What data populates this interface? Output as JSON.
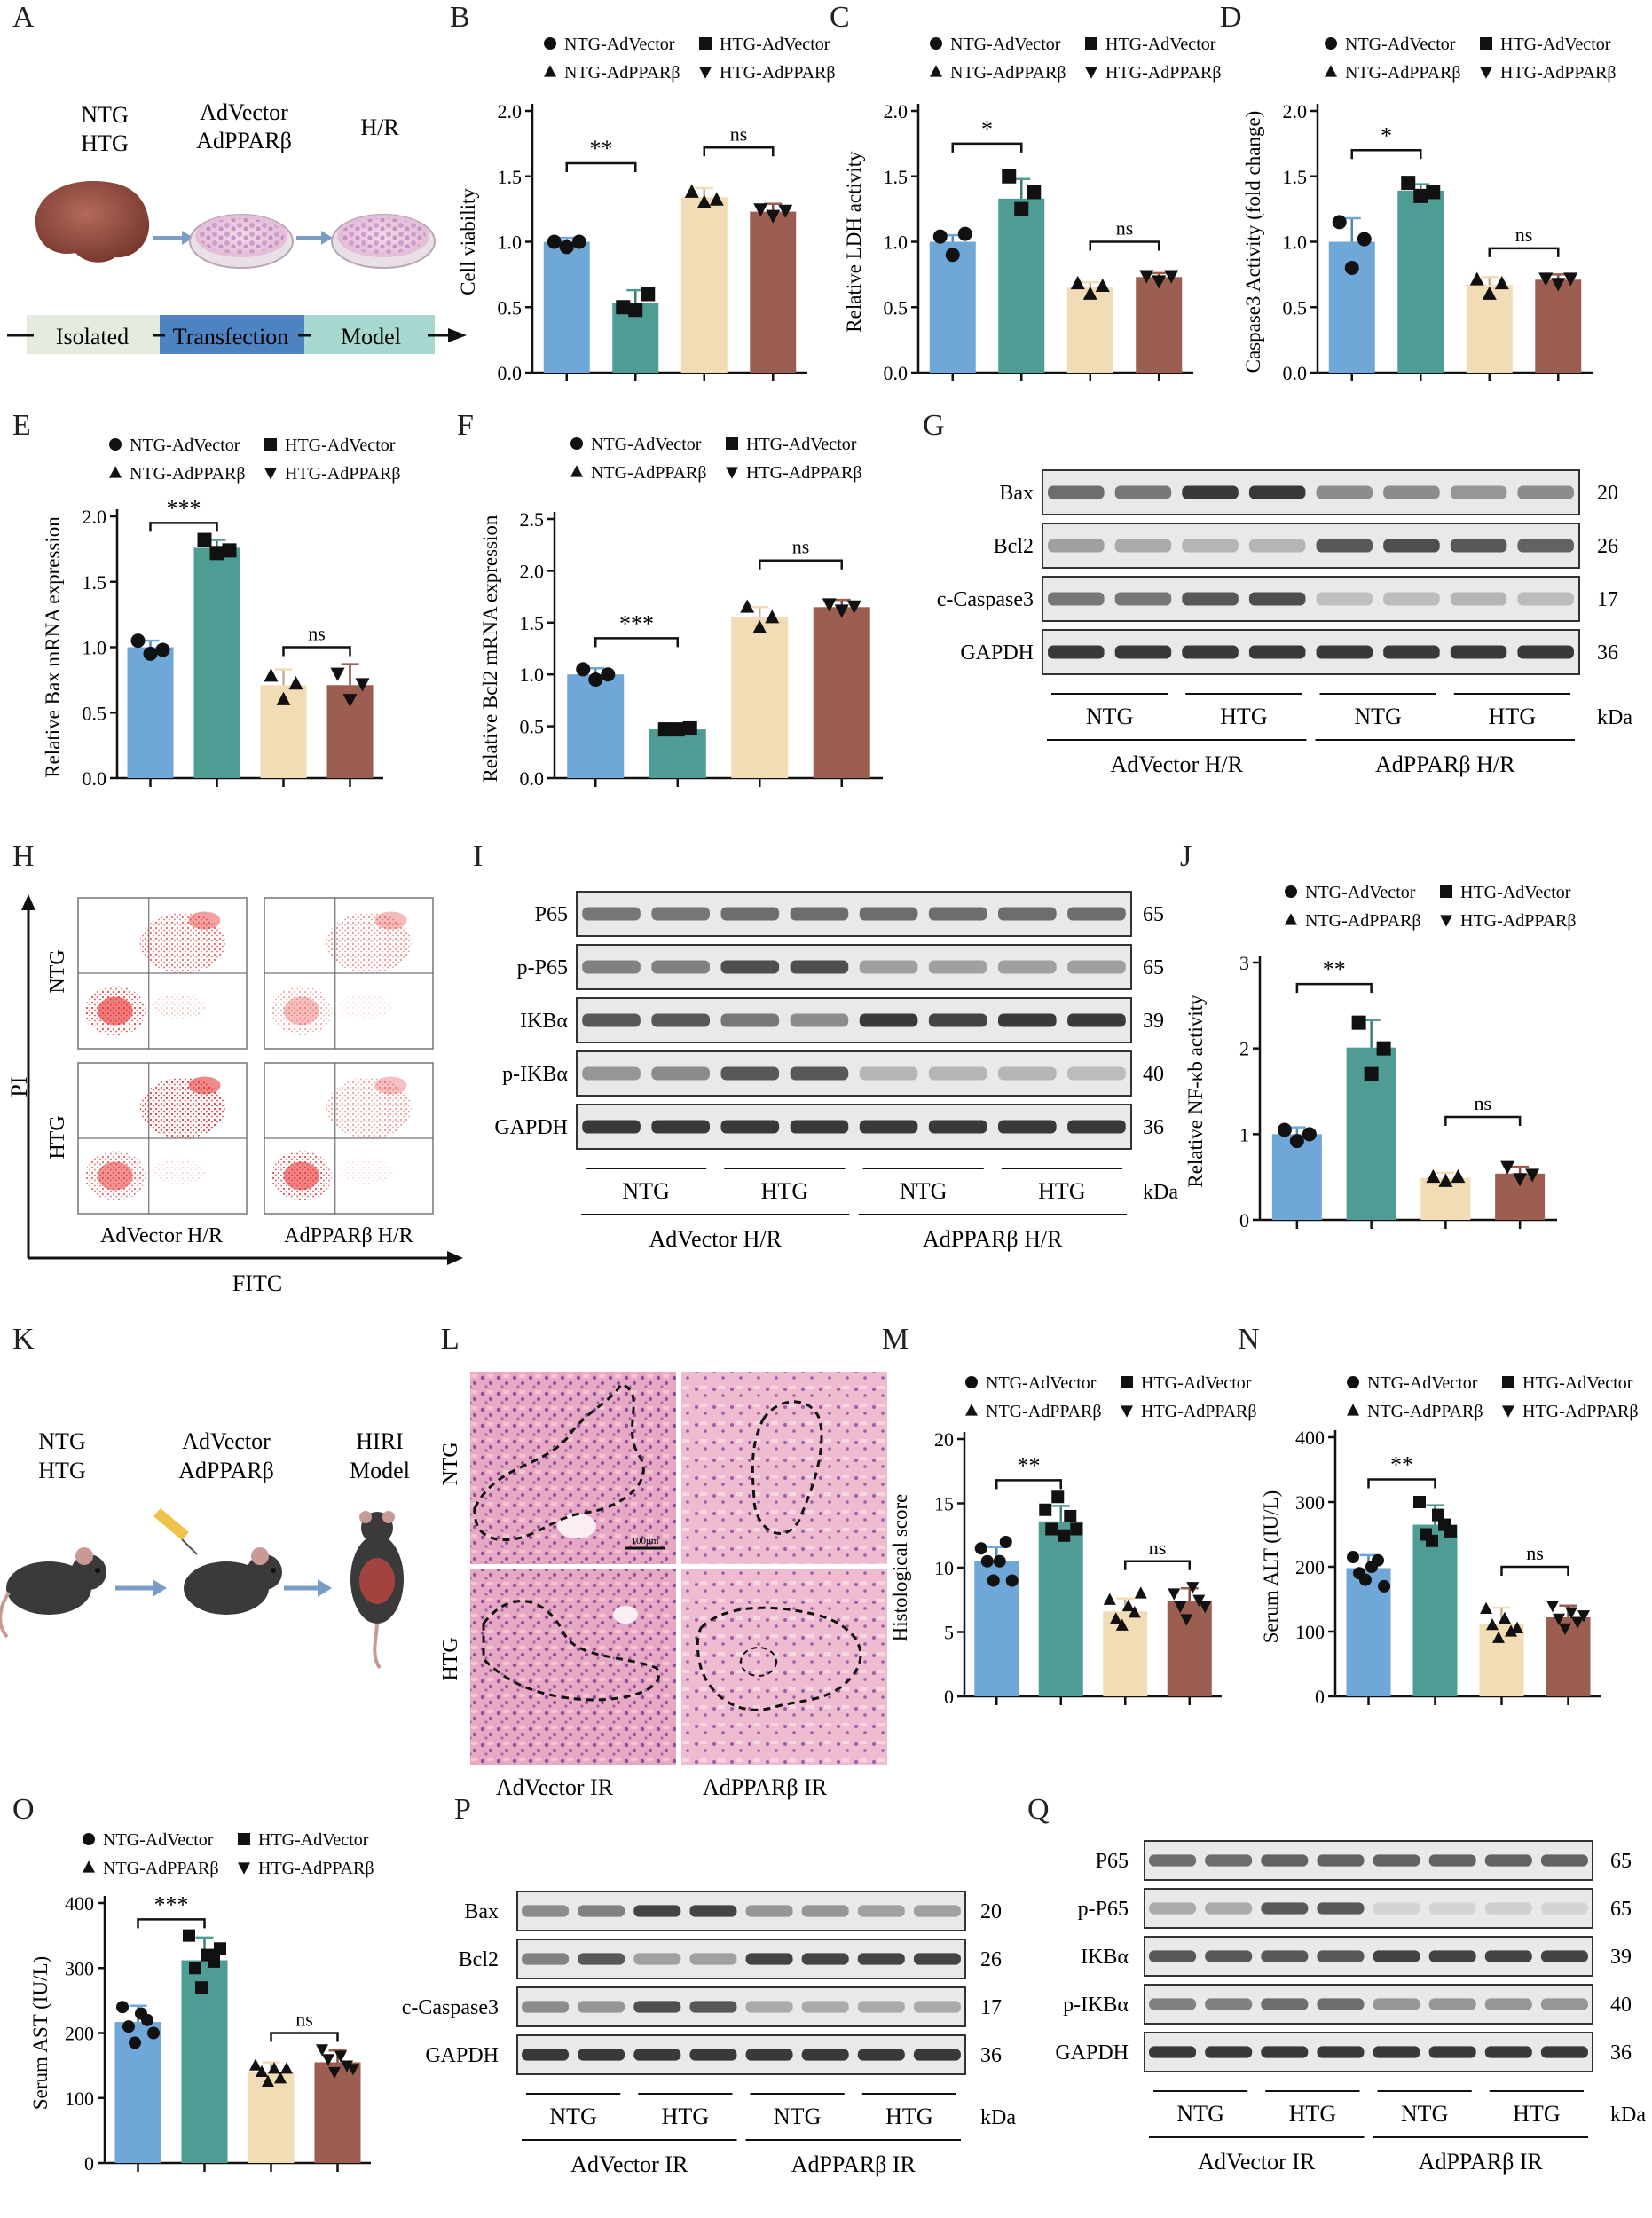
{
  "figure": {
    "panel_letters": [
      "A",
      "B",
      "C",
      "D",
      "E",
      "F",
      "G",
      "H",
      "I",
      "J",
      "K",
      "L",
      "M",
      "N",
      "O",
      "P",
      "Q"
    ]
  },
  "colors": {
    "ntg_advector": "#6fa7d8",
    "htg_advector": "#4e9c94",
    "ntg_adpparb": "#f2dcb5",
    "htg_adpparb": "#9c5e50",
    "model_bar_1": "#e5ecdf",
    "model_bar_2": "#4e83c2",
    "model_bar_3": "#a7d8cf"
  },
  "legend": {
    "ntg_advector": "NTG-AdVector",
    "htg_advector": "HTG-AdVector",
    "ntg_adpparb": "NTG-AdPPARβ",
    "htg_adpparb": "HTG-AdPPARβ"
  },
  "panel_a": {
    "group_labels": [
      "NTG",
      "HTG"
    ],
    "vector_labels": [
      "AdVector",
      "AdPPARβ"
    ],
    "hr_label": "H/R",
    "timeline": [
      "Isolated",
      "Transfection",
      "Model"
    ]
  },
  "panel_k": {
    "group_labels": [
      "NTG",
      "HTG"
    ],
    "vector_labels": [
      "AdVector",
      "AdPPARβ"
    ],
    "model_labels": [
      "HIRI",
      "Model"
    ]
  },
  "panel_h": {
    "row_labels": [
      "NTG",
      "HTG"
    ],
    "col_labels": [
      "AdVector H/R",
      "AdPPARβ H/R"
    ],
    "y_axis": "PI",
    "x_axis": "FITC"
  },
  "panel_l": {
    "row_labels": [
      "NTG",
      "HTG"
    ],
    "col_labels": [
      "AdVector IR",
      "AdPPARβ IR"
    ],
    "scale_bar": "100μm"
  },
  "blots": {
    "G": {
      "bands": [
        "Bax",
        "Bcl2",
        "c-Caspase3",
        "GAPDH"
      ],
      "kda": [
        "20",
        "26",
        "17",
        "36"
      ],
      "groups": [
        "NTG",
        "HTG",
        "NTG",
        "HTG"
      ],
      "conditions": [
        "AdVector H/R",
        "AdPPARβ H/R"
      ],
      "kda_label": "kDa"
    },
    "I": {
      "bands": [
        "P65",
        "p-P65",
        "IKBα",
        "p-IKBα",
        "GAPDH"
      ],
      "kda": [
        "65",
        "65",
        "39",
        "40",
        "36"
      ],
      "groups": [
        "NTG",
        "HTG",
        "NTG",
        "HTG"
      ],
      "conditions": [
        "AdVector H/R",
        "AdPPARβ H/R"
      ],
      "kda_label": "kDa"
    },
    "P": {
      "bands": [
        "Bax",
        "Bcl2",
        "c-Caspase3",
        "GAPDH"
      ],
      "kda": [
        "20",
        "26",
        "17",
        "36"
      ],
      "groups": [
        "NTG",
        "HTG",
        "NTG",
        "HTG"
      ],
      "conditions": [
        "AdVector IR",
        "AdPPARβ IR"
      ],
      "kda_label": "kDa"
    },
    "Q": {
      "bands": [
        "P65",
        "p-P65",
        "IKBα",
        "p-IKBα",
        "GAPDH"
      ],
      "kda": [
        "65",
        "65",
        "39",
        "40",
        "36"
      ],
      "groups": [
        "NTG",
        "HTG",
        "NTG",
        "HTG"
      ],
      "conditions": [
        "AdVector IR",
        "AdPPARβ IR"
      ],
      "kda_label": "kDa"
    }
  },
  "chart_data": [
    {
      "id": "B",
      "type": "bar",
      "ylabel": "Cell viability",
      "ylim": [
        0,
        2.0
      ],
      "yticks": [
        "0.0",
        "0.5",
        "1.0",
        "1.5",
        "2.0"
      ],
      "categories": [
        "NTG-AdVector",
        "HTG-AdVector",
        "NTG-AdPPARβ",
        "HTG-AdPPARβ"
      ],
      "values": [
        1.0,
        0.53,
        1.34,
        1.23
      ],
      "errors": [
        0.03,
        0.1,
        0.07,
        0.06
      ],
      "points": [
        [
          1.0,
          0.96,
          1.0
        ],
        [
          0.5,
          0.48,
          0.6
        ],
        [
          1.38,
          1.3,
          1.32
        ],
        [
          1.25,
          1.2,
          1.24
        ]
      ],
      "sig": [
        {
          "a": 0,
          "b": 1,
          "label": "**",
          "y": 1.6
        },
        {
          "a": 2,
          "b": 3,
          "label": "ns",
          "y": 1.72
        }
      ]
    },
    {
      "id": "C",
      "type": "bar",
      "ylabel": "Relative LDH activity",
      "ylim": [
        0,
        2.0
      ],
      "yticks": [
        "0.0",
        "0.5",
        "1.0",
        "1.5",
        "2.0"
      ],
      "categories": [
        "NTG-AdVector",
        "HTG-AdVector",
        "NTG-AdPPARβ",
        "HTG-AdPPARβ"
      ],
      "values": [
        1.0,
        1.33,
        0.65,
        0.73
      ],
      "errors": [
        0.05,
        0.15,
        0.04,
        0.03
      ],
      "points": [
        [
          1.04,
          0.9,
          1.06
        ],
        [
          1.5,
          1.25,
          1.38
        ],
        [
          0.68,
          0.6,
          0.66
        ],
        [
          0.74,
          0.7,
          0.74
        ]
      ],
      "sig": [
        {
          "a": 0,
          "b": 1,
          "label": "*",
          "y": 1.75
        },
        {
          "a": 2,
          "b": 3,
          "label": "ns",
          "y": 1.0
        }
      ]
    },
    {
      "id": "D",
      "type": "bar",
      "ylabel": "Caspase3 Activity (fold change)",
      "ylim": [
        0,
        2.0
      ],
      "yticks": [
        "0.0",
        "0.5",
        "1.0",
        "1.5",
        "2.0"
      ],
      "categories": [
        "NTG-AdVector",
        "HTG-AdVector",
        "NTG-AdPPARβ",
        "HTG-AdPPARβ"
      ],
      "values": [
        1.0,
        1.39,
        0.67,
        0.71
      ],
      "errors": [
        0.18,
        0.05,
        0.06,
        0.04
      ],
      "points": [
        [
          1.15,
          0.8,
          1.02
        ],
        [
          1.45,
          1.35,
          1.38
        ],
        [
          0.71,
          0.6,
          0.68
        ],
        [
          0.72,
          0.68,
          0.72
        ]
      ],
      "sig": [
        {
          "a": 0,
          "b": 1,
          "label": "*",
          "y": 1.7
        },
        {
          "a": 2,
          "b": 3,
          "label": "ns",
          "y": 0.95
        }
      ]
    },
    {
      "id": "E",
      "type": "bar",
      "ylabel": "Relative Bax mRNA expression",
      "ylim": [
        0,
        2.0
      ],
      "yticks": [
        "0.0",
        "0.5",
        "1.0",
        "1.5",
        "2.0"
      ],
      "categories": [
        "NTG-AdVector",
        "HTG-AdVector",
        "NTG-AdPPARβ",
        "HTG-AdPPARβ"
      ],
      "values": [
        1.0,
        1.76,
        0.71,
        0.71
      ],
      "errors": [
        0.05,
        0.06,
        0.12,
        0.16
      ],
      "points": [
        [
          1.05,
          0.95,
          0.98
        ],
        [
          1.82,
          1.72,
          1.74
        ],
        [
          0.78,
          0.6,
          0.72
        ],
        [
          0.8,
          0.6,
          0.72
        ]
      ],
      "sig": [
        {
          "a": 0,
          "b": 1,
          "label": "***",
          "y": 1.95
        },
        {
          "a": 2,
          "b": 3,
          "label": "ns",
          "y": 1.0
        }
      ]
    },
    {
      "id": "F",
      "type": "bar",
      "ylabel": "Relative Bcl2 mRNA expression",
      "ylim": [
        0,
        2.5
      ],
      "yticks": [
        "0.0",
        "0.5",
        "1.0",
        "1.5",
        "2.0",
        "2.5"
      ],
      "categories": [
        "NTG-AdVector",
        "HTG-AdVector",
        "NTG-AdPPARβ",
        "HTG-AdPPARβ"
      ],
      "values": [
        1.0,
        0.47,
        1.55,
        1.65
      ],
      "errors": [
        0.06,
        0.02,
        0.1,
        0.07
      ],
      "points": [
        [
          1.05,
          0.95,
          1.0
        ],
        [
          0.47,
          0.47,
          0.48
        ],
        [
          1.65,
          1.45,
          1.55
        ],
        [
          1.68,
          1.62,
          1.66
        ]
      ],
      "sig": [
        {
          "a": 0,
          "b": 1,
          "label": "***",
          "y": 1.35
        },
        {
          "a": 2,
          "b": 3,
          "label": "ns",
          "y": 2.1
        }
      ]
    },
    {
      "id": "J",
      "type": "bar",
      "ylabel": "Relative NF-κb activity",
      "ylim": [
        0,
        3
      ],
      "yticks": [
        "0",
        "1",
        "2",
        "3"
      ],
      "categories": [
        "NTG-AdVector",
        "HTG-AdVector",
        "NTG-AdPPARβ",
        "HTG-AdPPARβ"
      ],
      "values": [
        1.0,
        2.01,
        0.49,
        0.54
      ],
      "errors": [
        0.08,
        0.32,
        0.06,
        0.08
      ],
      "points": [
        [
          1.05,
          0.92,
          1.0
        ],
        [
          2.3,
          1.7,
          2.0
        ],
        [
          0.5,
          0.45,
          0.5
        ],
        [
          0.62,
          0.48,
          0.53
        ]
      ],
      "sig": [
        {
          "a": 0,
          "b": 1,
          "label": "**",
          "y": 2.75
        },
        {
          "a": 2,
          "b": 3,
          "label": "ns",
          "y": 1.2
        }
      ]
    },
    {
      "id": "M",
      "type": "bar",
      "ylabel": "Histological score",
      "ylim": [
        0,
        20
      ],
      "yticks": [
        "0",
        "5",
        "10",
        "15",
        "20"
      ],
      "categories": [
        "NTG-AdVector",
        "HTG-AdVector",
        "NTG-AdPPARβ",
        "HTG-AdPPARβ"
      ],
      "values": [
        10.5,
        13.6,
        6.6,
        7.4
      ],
      "errors": [
        1.1,
        1.2,
        1.0,
        1.0
      ],
      "points": [
        [
          11.5,
          10.5,
          9.0,
          10.5,
          12.0,
          9.0
        ],
        [
          14.5,
          13.0,
          15.5,
          12.5,
          14.0,
          13.0
        ],
        [
          7.5,
          6.0,
          5.5,
          7.0,
          6.5,
          8.0
        ],
        [
          8.0,
          7.0,
          6.0,
          8.5,
          7.5,
          7.0
        ]
      ],
      "sig": [
        {
          "a": 0,
          "b": 1,
          "label": "**",
          "y": 16.8
        },
        {
          "a": 2,
          "b": 3,
          "label": "ns",
          "y": 10.5
        }
      ]
    },
    {
      "id": "N",
      "type": "bar",
      "ylabel": "Serum ALT (IU/L)",
      "ylim": [
        0,
        400
      ],
      "yticks": [
        "0",
        "100",
        "200",
        "300",
        "400"
      ],
      "categories": [
        "NTG-AdVector",
        "HTG-AdVector",
        "NTG-AdPPARβ",
        "HTG-AdPPARβ"
      ],
      "values": [
        198,
        265,
        112,
        122
      ],
      "errors": [
        20,
        30,
        25,
        18
      ],
      "points": [
        [
          215,
          190,
          180,
          200,
          210,
          170
        ],
        [
          300,
          250,
          240,
          280,
          265,
          255
        ],
        [
          135,
          110,
          90,
          120,
          100,
          105
        ],
        [
          140,
          120,
          105,
          130,
          115,
          125
        ]
      ],
      "sig": [
        {
          "a": 0,
          "b": 1,
          "label": "**",
          "y": 335
        },
        {
          "a": 2,
          "b": 3,
          "label": "ns",
          "y": 200
        }
      ]
    },
    {
      "id": "O",
      "type": "bar",
      "ylabel": "Serum AST (IU/L)",
      "ylim": [
        0,
        400
      ],
      "yticks": [
        "0",
        "100",
        "200",
        "300",
        "400"
      ],
      "categories": [
        "NTG-AdVector",
        "HTG-AdVector",
        "NTG-AdPPARβ",
        "HTG-AdPPARβ"
      ],
      "values": [
        217,
        312,
        140,
        155
      ],
      "errors": [
        25,
        35,
        15,
        18
      ],
      "points": [
        [
          240,
          210,
          185,
          230,
          220,
          200
        ],
        [
          350,
          300,
          270,
          320,
          310,
          330
        ],
        [
          150,
          140,
          125,
          145,
          130,
          145
        ],
        [
          175,
          160,
          140,
          165,
          150,
          145
        ]
      ],
      "sig": [
        {
          "a": 0,
          "b": 1,
          "label": "***",
          "y": 375
        },
        {
          "a": 2,
          "b": 3,
          "label": "ns",
          "y": 200
        }
      ]
    }
  ]
}
